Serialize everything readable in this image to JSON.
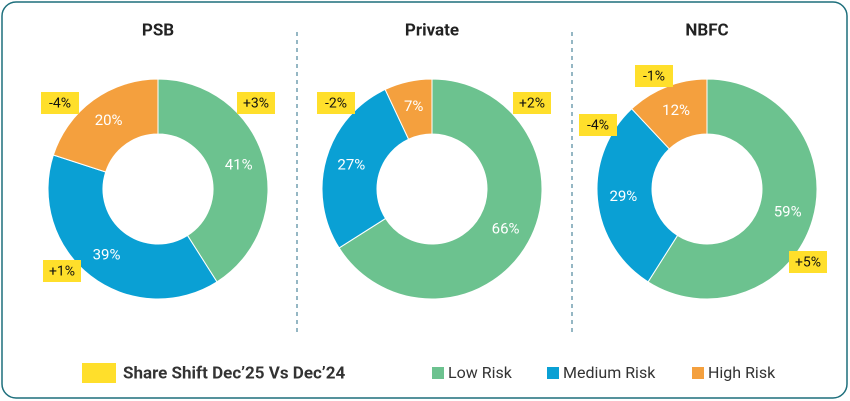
{
  "chart_data": [
    {
      "type": "donut",
      "title": "PSB",
      "categories": [
        "Low Risk",
        "Medium Risk",
        "High Risk"
      ],
      "values": [
        41,
        39,
        20
      ],
      "value_labels": [
        "41%",
        "39%",
        "20%"
      ],
      "colors": [
        "#6cc28f",
        "#0aa0d4",
        "#f4a03e"
      ],
      "shifts": [
        3,
        1,
        -4
      ],
      "shift_labels": [
        "+3%",
        "+1%",
        "-4%"
      ]
    },
    {
      "type": "donut",
      "title": "Private",
      "categories": [
        "Low Risk",
        "Medium Risk",
        "High Risk"
      ],
      "values": [
        66,
        27,
        7
      ],
      "value_labels": [
        "66%",
        "27%",
        "7%"
      ],
      "colors": [
        "#6cc28f",
        "#0aa0d4",
        "#f4a03e"
      ],
      "shifts": [
        2,
        -2,
        null
      ],
      "shift_labels": [
        "+2%",
        "-2%",
        null
      ]
    },
    {
      "type": "donut",
      "title": "NBFC",
      "categories": [
        "Low Risk",
        "Medium Risk",
        "High Risk"
      ],
      "values": [
        59,
        29,
        12
      ],
      "value_labels": [
        "59%",
        "29%",
        "12%"
      ],
      "colors": [
        "#6cc28f",
        "#0aa0d4",
        "#f4a03e"
      ],
      "shifts": [
        5,
        -4,
        -1
      ],
      "shift_labels": [
        "+5%",
        "-4%",
        "-1%"
      ]
    }
  ],
  "legend": {
    "shift_label": "Share Shift Dec’25 Vs Dec’24",
    "shift_color": "#ffdf2b"
  }
}
